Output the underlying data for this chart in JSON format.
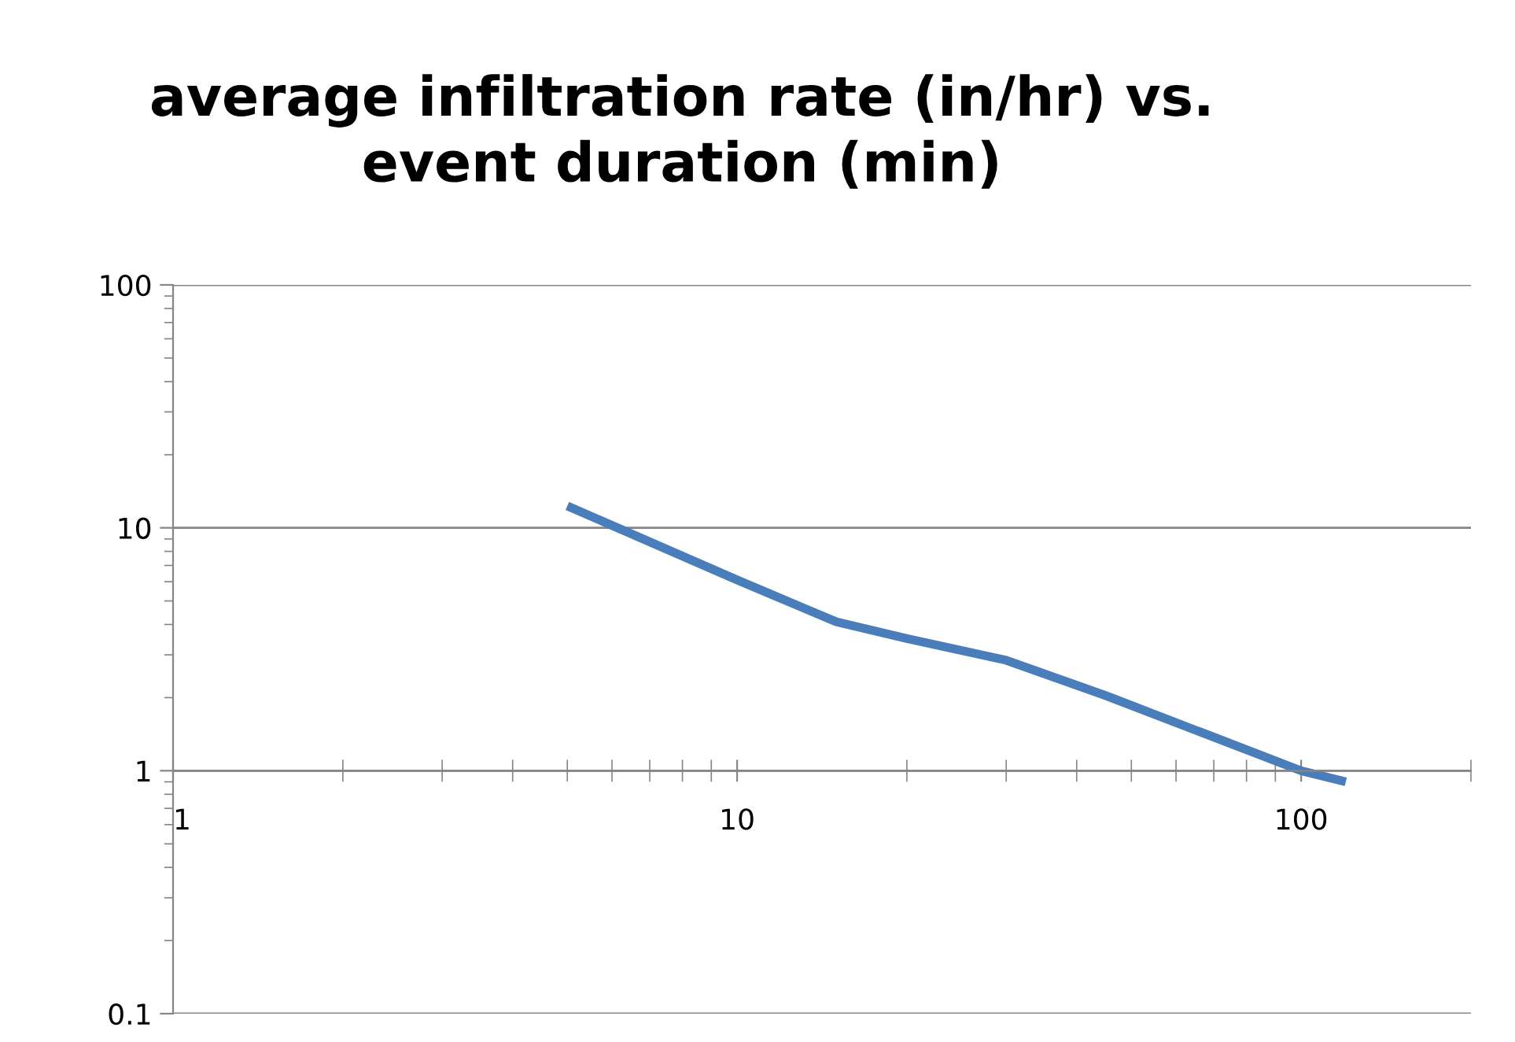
{
  "chart_data": {
    "type": "line",
    "title": "average infiltration rate (in/hr) vs.\nevent duration (min)",
    "x": [
      5,
      10,
      15,
      20,
      30,
      45,
      100,
      120
    ],
    "series": [
      {
        "color": "#4a7ebb",
        "values": [
          12.3,
          6.1,
          4.1,
          3.5,
          2.85,
          2.04,
          1.0,
          0.9
        ]
      }
    ],
    "log": "xy",
    "xlim": [
      1,
      200
    ],
    "ylim": [
      0.1,
      100
    ],
    "xticks": [
      1,
      10,
      100
    ],
    "yticks": [
      0.1,
      1,
      10,
      100
    ],
    "grid": "y",
    "legend": false,
    "marker": "none",
    "line_style": "solid"
  }
}
